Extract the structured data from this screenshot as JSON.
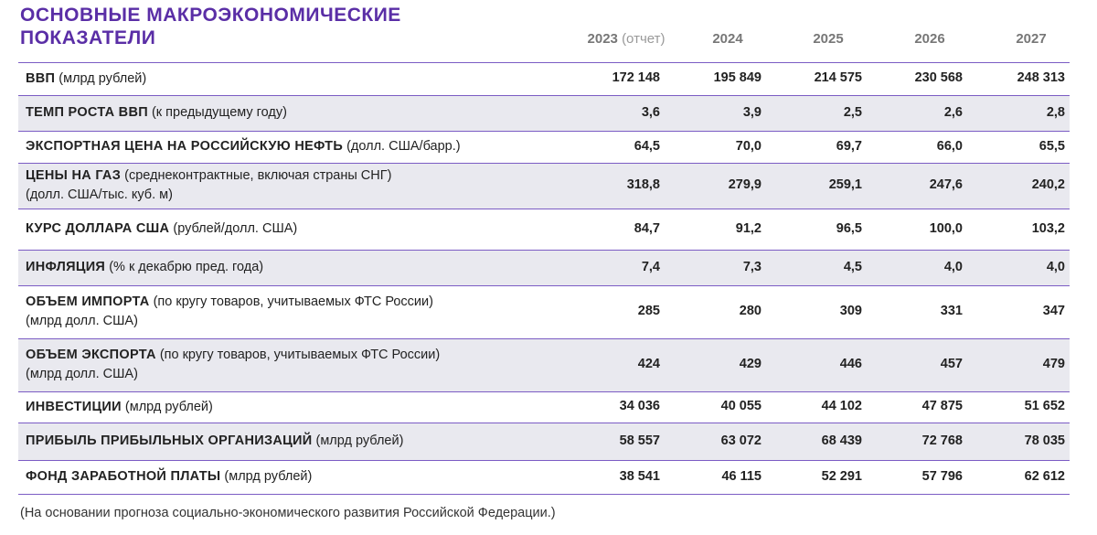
{
  "header": {
    "title": [
      "ОСНОВНЫЕ МАКРОЭКОНОМИЧЕСКИЕ",
      "ПОКАЗАТЕЛИ"
    ]
  },
  "table": {
    "columns": [
      {
        "year": "2023",
        "note": "(отчет)"
      },
      {
        "year": "2024"
      },
      {
        "year": "2025"
      },
      {
        "year": "2026"
      },
      {
        "year": "2027"
      }
    ],
    "rows": [
      {
        "name": "ВВП",
        "note": [
          "(млрд рублей)"
        ],
        "values": [
          "172 148",
          "195 849",
          "214 575",
          "230 568",
          "248 313"
        ]
      },
      {
        "name": "ТЕМП РОСТА ВВП",
        "note": [
          "(к предыдущему году)"
        ],
        "values": [
          "3,6",
          "3,9",
          "2,5",
          "2,6",
          "2,8"
        ]
      },
      {
        "name": "ЭКСПОРТНАЯ ЦЕНА НА РОССИЙСКУЮ НЕФТЬ",
        "note": [
          "(долл. США/барр.)"
        ],
        "values": [
          "64,5",
          "70,0",
          "69,7",
          "66,0",
          "65,5"
        ]
      },
      {
        "name": "ЦЕНЫ НА ГАЗ",
        "note": [
          "(среднеконтрактные, включая страны СНГ)",
          "(долл. США/тыс. куб. м)"
        ],
        "values": [
          "318,8",
          "279,9",
          "259,1",
          "247,6",
          "240,2"
        ]
      },
      {
        "name": "КУРС ДОЛЛАРА США",
        "note": [
          "(рублей/долл. США)"
        ],
        "values": [
          "84,7",
          "91,2",
          "96,5",
          "100,0",
          "103,2"
        ]
      },
      {
        "name": "ИНФЛЯЦИЯ",
        "note": [
          "(% к декабрю пред. года)"
        ],
        "values": [
          "7,4",
          "7,3",
          "4,5",
          "4,0",
          "4,0"
        ]
      },
      {
        "name": "ОБЪЕМ ИМПОРТА",
        "note": [
          "(по кругу товаров, учитываемых ФТС России)",
          "(млрд долл. США)"
        ],
        "values": [
          "285",
          "280",
          "309",
          "331",
          "347"
        ]
      },
      {
        "name": "ОБЪЕМ ЭКСПОРТА",
        "note": [
          "(по кругу товаров, учитываемых ФТС России)",
          "(млрд долл. США)"
        ],
        "values": [
          "424",
          "429",
          "446",
          "457",
          "479"
        ]
      },
      {
        "name": "ИНВЕСТИЦИИ",
        "note": [
          "(млрд рублей)"
        ],
        "values": [
          "34 036",
          "40 055",
          "44 102",
          "47 875",
          "51 652"
        ]
      },
      {
        "name": "ПРИБЫЛЬ ПРИБЫЛЬНЫХ ОРГАНИЗАЦИЙ",
        "note": [
          "(млрд рублей)"
        ],
        "values": [
          "58 557",
          "63 072",
          "68 439",
          "72 768",
          "78 035"
        ]
      },
      {
        "name": "ФОНД ЗАРАБОТНОЙ ПЛАТЫ",
        "note": [
          "(млрд рублей)"
        ],
        "values": [
          "38 541",
          "46 115",
          "52 291",
          "57 796",
          "62 612"
        ]
      }
    ]
  },
  "footnote": "(На основании прогноза социально-экономического развития Российской Федерации.)"
}
